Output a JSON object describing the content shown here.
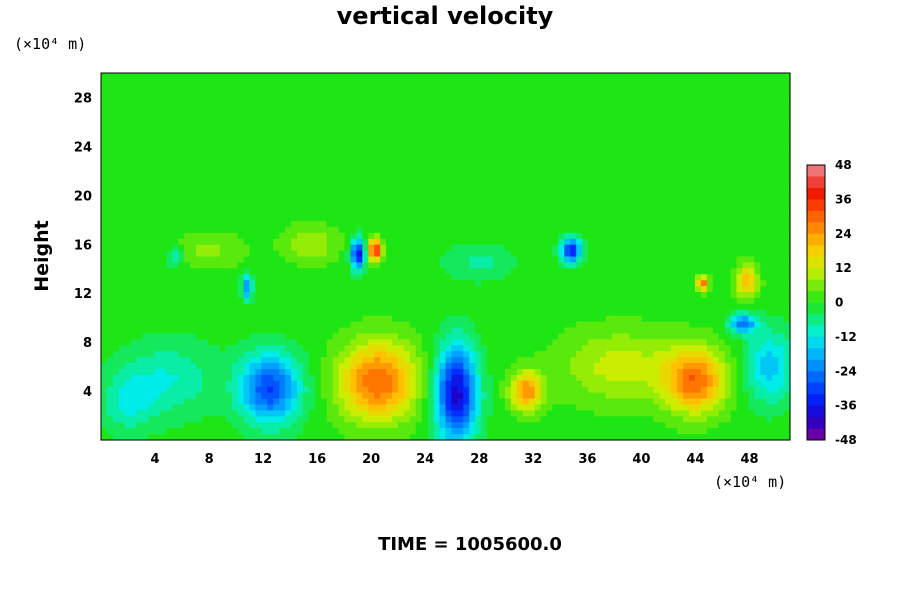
{
  "chart_data": {
    "type": "heatmap",
    "title": "vertical velocity",
    "ylabel": "Height",
    "x_unit_label": "(×10⁴ m)",
    "y_unit_label": "(×10⁴ m)",
    "footer": "TIME = 1005600.0",
    "xlim": [
      0,
      51
    ],
    "ylim": [
      0,
      30
    ],
    "x_ticks": [
      4,
      8,
      12,
      16,
      20,
      24,
      28,
      32,
      36,
      40,
      44,
      48
    ],
    "y_ticks": [
      4,
      8,
      12,
      16,
      20,
      24,
      28
    ],
    "colorbar": {
      "range": [
        -48,
        48
      ],
      "tick_values": [
        48,
        36,
        24,
        12,
        0,
        -12,
        -24,
        -36,
        -48
      ]
    },
    "background_value": 0,
    "features": [
      {
        "x": 12.5,
        "y": 4.2,
        "sx": 2.2,
        "sy": 2.8,
        "value": -30
      },
      {
        "x": 20.5,
        "y": 4.8,
        "sx": 2.8,
        "sy": 3.2,
        "value": 30
      },
      {
        "x": 26.3,
        "y": 3.8,
        "sx": 1.5,
        "sy": 3.8,
        "value": -40
      },
      {
        "x": 31.5,
        "y": 4.0,
        "sx": 1.2,
        "sy": 1.6,
        "value": 25
      },
      {
        "x": 38.5,
        "y": 6.0,
        "sx": 4.5,
        "sy": 3.0,
        "value": 12
      },
      {
        "x": 44.0,
        "y": 4.8,
        "sx": 2.2,
        "sy": 2.6,
        "value": 28
      },
      {
        "x": 49.5,
        "y": 6.0,
        "sx": 1.8,
        "sy": 3.0,
        "value": -16
      },
      {
        "x": 5.0,
        "y": 5.0,
        "sx": 3.5,
        "sy": 3.0,
        "value": -10
      },
      {
        "x": 2.0,
        "y": 3.0,
        "sx": 2.0,
        "sy": 2.5,
        "value": -9
      },
      {
        "x": 19.0,
        "y": 15.2,
        "sx": 0.5,
        "sy": 1.2,
        "value": -38
      },
      {
        "x": 20.3,
        "y": 15.5,
        "sx": 0.5,
        "sy": 0.9,
        "value": 38
      },
      {
        "x": 34.8,
        "y": 15.5,
        "sx": 0.7,
        "sy": 1.0,
        "value": -34
      },
      {
        "x": 10.8,
        "y": 12.5,
        "sx": 0.4,
        "sy": 1.0,
        "value": -22
      },
      {
        "x": 44.5,
        "y": 12.8,
        "sx": 0.4,
        "sy": 0.6,
        "value": 30
      },
      {
        "x": 47.8,
        "y": 13.0,
        "sx": 0.8,
        "sy": 1.3,
        "value": 22
      },
      {
        "x": 15.5,
        "y": 16.0,
        "sx": 2.0,
        "sy": 1.5,
        "value": 10
      },
      {
        "x": 8.0,
        "y": 15.5,
        "sx": 2.5,
        "sy": 1.5,
        "value": 7
      },
      {
        "x": 28.0,
        "y": 14.5,
        "sx": 2.5,
        "sy": 1.5,
        "value": -7
      },
      {
        "x": 47.5,
        "y": 9.5,
        "sx": 1.0,
        "sy": 0.8,
        "value": -24
      },
      {
        "x": 5.5,
        "y": 15.0,
        "sx": 0.6,
        "sy": 0.8,
        "value": -12
      }
    ]
  }
}
